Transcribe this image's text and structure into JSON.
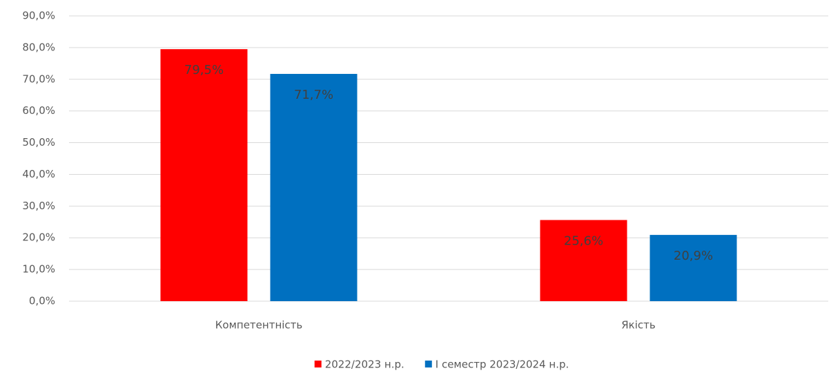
{
  "chart_data": {
    "type": "bar",
    "categories": [
      "Компетентність",
      "Якість"
    ],
    "series": [
      {
        "name": "2022/2023 н.р.",
        "color": "#ff0000",
        "values": [
          79.5,
          25.6
        ],
        "value_labels": [
          "79,5%",
          "25,6%"
        ]
      },
      {
        "name": "І семестр 2023/2024 н.р.",
        "color": "#0070c0",
        "values": [
          71.7,
          20.9
        ],
        "value_labels": [
          "71,7%",
          "20,9%"
        ]
      }
    ],
    "ylim": [
      0,
      90
    ],
    "yticks": [
      {
        "value": 0,
        "label": "0,0%"
      },
      {
        "value": 10,
        "label": "10,0%"
      },
      {
        "value": 20,
        "label": "20,0%"
      },
      {
        "value": 30,
        "label": "30,0%"
      },
      {
        "value": 40,
        "label": "40,0%"
      },
      {
        "value": 50,
        "label": "50,0%"
      },
      {
        "value": 60,
        "label": "60,0%"
      },
      {
        "value": 70,
        "label": "70,0%"
      },
      {
        "value": 80,
        "label": "80,0%"
      },
      {
        "value": 90,
        "label": "90,0%"
      }
    ],
    "grid": true,
    "legend": "bottom"
  }
}
